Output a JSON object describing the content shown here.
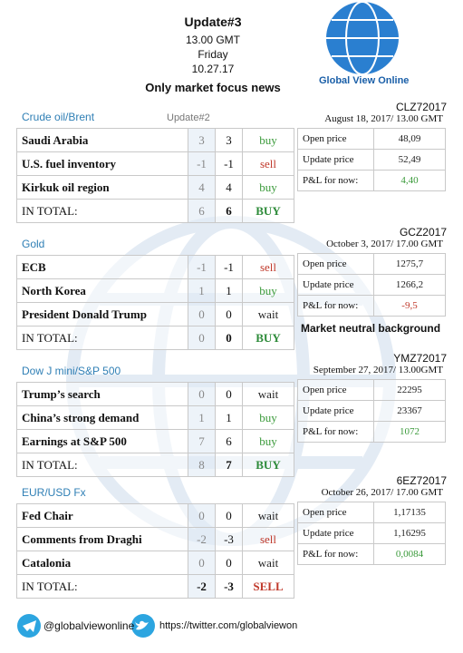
{
  "header": {
    "title": "Update#3",
    "time": "13.00 GMT",
    "day": "Friday",
    "date": "10.27.17",
    "subtitle": "Only market focus news",
    "logo": "Global View Online"
  },
  "sections": [
    {
      "heading": "Crude oil/Brent",
      "note": "Update#2",
      "rows": [
        {
          "label": "Saudi Arabia",
          "prev": "3",
          "curr": "3",
          "signal": "buy",
          "color": "#3a9a3a"
        },
        {
          "label": "U.S. fuel inventory",
          "prev": "-1",
          "curr": "-1",
          "signal": "sell",
          "color": "#c0392b"
        },
        {
          "label": "Kirkuk oil region",
          "prev": "4",
          "curr": "4",
          "signal": "buy",
          "color": "#3a9a3a"
        }
      ],
      "total": {
        "label": "IN TOTAL:",
        "prev": "6",
        "curr": "6",
        "signal": "BUY",
        "color": "#2e8b3a"
      }
    },
    {
      "heading": "Gold",
      "rows": [
        {
          "label": "ECB",
          "prev": "-1",
          "curr": "-1",
          "signal": "sell",
          "color": "#c0392b"
        },
        {
          "label": "North Korea",
          "prev": "1",
          "curr": "1",
          "signal": "buy",
          "color": "#3a9a3a"
        },
        {
          "label": "President Donald Trump",
          "prev": "0",
          "curr": "0",
          "signal": "wait",
          "color": "#222222"
        }
      ],
      "total": {
        "label": "IN TOTAL:",
        "prev": "0",
        "curr": "0",
        "signal": "BUY",
        "color": "#2e8b3a"
      }
    },
    {
      "heading": "Dow J mini/S&P 500",
      "rows": [
        {
          "label": "Trump’s search",
          "prev": "0",
          "curr": "0",
          "signal": "wait",
          "color": "#222222"
        },
        {
          "label": "China’s strong demand",
          "prev": "1",
          "curr": "1",
          "signal": "buy",
          "color": "#3a9a3a"
        },
        {
          "label": "Earnings at S&P 500",
          "prev": "7",
          "curr": "6",
          "signal": "buy",
          "color": "#3a9a3a"
        }
      ],
      "total": {
        "label": "IN TOTAL:",
        "prev": "8",
        "curr": "7",
        "signal": "BUY",
        "color": "#2e8b3a"
      }
    },
    {
      "heading": "EUR/USD Fx",
      "rows": [
        {
          "label": "Fed Chair",
          "prev": "0",
          "curr": "0",
          "signal": "wait",
          "color": "#222222"
        },
        {
          "label": "Comments from Draghi",
          "prev": "-2",
          "curr": "-3",
          "signal": "sell",
          "color": "#c0392b"
        },
        {
          "label": "Catalonia",
          "prev": "0",
          "curr": "0",
          "signal": "wait",
          "color": "#222222"
        }
      ],
      "total": {
        "label": "IN TOTAL:",
        "prev": "-2",
        "curr": "-3",
        "signal": "SELL",
        "color": "#c0392b"
      }
    }
  ],
  "panels": [
    {
      "code": "CLZ72017",
      "date": "August 18, 2017/ 13.00 GMT",
      "rows": [
        {
          "label": "Open price",
          "value": "48,09",
          "color": "#222222"
        },
        {
          "label": "Update price",
          "value": "52,49",
          "color": "#222222"
        },
        {
          "label": "P&L for now:",
          "value": "4,40",
          "color": "#3a9a3a"
        }
      ]
    },
    {
      "code": "GCZ2017",
      "date": "October 3, 2017/ 17.00 GMT",
      "rows": [
        {
          "label": "Open price",
          "value": "1275,7",
          "color": "#222222"
        },
        {
          "label": "Update price",
          "value": "1266,2",
          "color": "#222222"
        },
        {
          "label": "P&L for now:",
          "value": "-9,5",
          "color": "#c0392b"
        }
      ],
      "note": "Market neutral background"
    },
    {
      "code": "YMZ72017",
      "date": "September 27, 2017/ 13.00GMT",
      "rows": [
        {
          "label": "Open price",
          "value": "22295",
          "color": "#222222"
        },
        {
          "label": "Update price",
          "value": "23367",
          "color": "#222222"
        },
        {
          "label": "P&L for now:",
          "value": "1072",
          "color": "#3a9a3a"
        }
      ]
    },
    {
      "code": "6EZ72017",
      "date": "October 26, 2017/ 17.00 GMT",
      "rows": [
        {
          "label": "Open price",
          "value": "1,17135",
          "color": "#222222"
        },
        {
          "label": "Update price",
          "value": "1,16295",
          "color": "#222222"
        },
        {
          "label": "P&L for now:",
          "value": "0,0084",
          "color": "#3a9a3a"
        }
      ]
    }
  ],
  "footer": {
    "telegram": "@globalviewonline",
    "twitter": "https://twitter.com/globalviewon"
  }
}
